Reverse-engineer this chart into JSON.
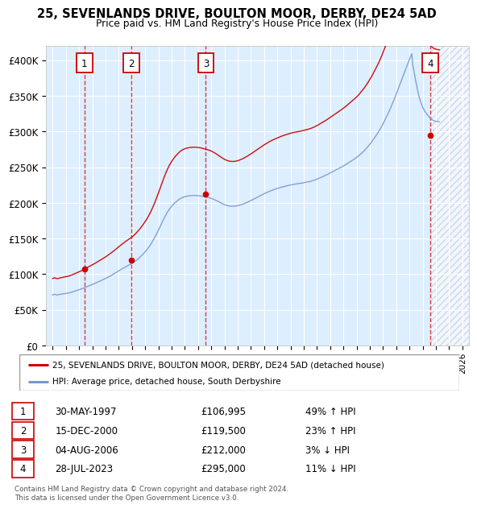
{
  "title": "25, SEVENLANDS DRIVE, BOULTON MOOR, DERBY, DE24 5AD",
  "subtitle": "Price paid vs. HM Land Registry's House Price Index (HPI)",
  "legend_line1": "25, SEVENLANDS DRIVE, BOULTON MOOR, DERBY, DE24 5AD (detached house)",
  "legend_line2": "HPI: Average price, detached house, South Derbyshire",
  "footer": "Contains HM Land Registry data © Crown copyright and database right 2024.\nThis data is licensed under the Open Government Licence v3.0.",
  "transactions": [
    {
      "num": 1,
      "date": "30-MAY-1997",
      "price": 106995,
      "hpi_pct": "49%",
      "hpi_dir": "↑"
    },
    {
      "num": 2,
      "date": "15-DEC-2000",
      "price": 119500,
      "hpi_pct": "23%",
      "hpi_dir": "↑"
    },
    {
      "num": 3,
      "date": "04-AUG-2006",
      "price": 212000,
      "hpi_pct": "3%",
      "hpi_dir": "↓"
    },
    {
      "num": 4,
      "date": "28-JUL-2023",
      "price": 295000,
      "hpi_pct": "11%",
      "hpi_dir": "↓"
    }
  ],
  "transaction_years": [
    1997.41,
    2000.96,
    2006.59,
    2023.57
  ],
  "transaction_prices": [
    106995,
    119500,
    212000,
    295000
  ],
  "sale_color": "#cc0000",
  "hpi_color": "#7799cc",
  "ylim": [
    0,
    420000
  ],
  "xlim_start": 1994.5,
  "xlim_end": 2026.5,
  "yticks": [
    0,
    50000,
    100000,
    150000,
    200000,
    250000,
    300000,
    350000,
    400000
  ],
  "xtick_years": [
    1995,
    1996,
    1997,
    1998,
    1999,
    2000,
    2001,
    2002,
    2003,
    2004,
    2005,
    2006,
    2007,
    2008,
    2009,
    2010,
    2011,
    2012,
    2013,
    2014,
    2015,
    2016,
    2017,
    2018,
    2019,
    2020,
    2021,
    2022,
    2023,
    2024,
    2025,
    2026
  ],
  "hpi_years": [
    1995.0,
    1995.083,
    1995.167,
    1995.25,
    1995.333,
    1995.417,
    1995.5,
    1995.583,
    1995.667,
    1995.75,
    1995.833,
    1995.917,
    1996.0,
    1996.083,
    1996.167,
    1996.25,
    1996.333,
    1996.417,
    1996.5,
    1996.583,
    1996.667,
    1996.75,
    1996.833,
    1996.917,
    1997.0,
    1997.083,
    1997.167,
    1997.25,
    1997.333,
    1997.417,
    1997.5,
    1997.583,
    1997.667,
    1997.75,
    1997.833,
    1997.917,
    1998.0,
    1998.083,
    1998.167,
    1998.25,
    1998.333,
    1998.417,
    1998.5,
    1998.583,
    1998.667,
    1998.75,
    1998.833,
    1998.917,
    1999.0,
    1999.083,
    1999.167,
    1999.25,
    1999.333,
    1999.417,
    1999.5,
    1999.583,
    1999.667,
    1999.75,
    1999.833,
    1999.917,
    2000.0,
    2000.083,
    2000.167,
    2000.25,
    2000.333,
    2000.417,
    2000.5,
    2000.583,
    2000.667,
    2000.75,
    2000.833,
    2000.917,
    2001.0,
    2001.083,
    2001.167,
    2001.25,
    2001.333,
    2001.417,
    2001.5,
    2001.583,
    2001.667,
    2001.75,
    2001.833,
    2001.917,
    2002.0,
    2002.083,
    2002.167,
    2002.25,
    2002.333,
    2002.417,
    2002.5,
    2002.583,
    2002.667,
    2002.75,
    2002.833,
    2002.917,
    2003.0,
    2003.083,
    2003.167,
    2003.25,
    2003.333,
    2003.417,
    2003.5,
    2003.583,
    2003.667,
    2003.75,
    2003.833,
    2003.917,
    2004.0,
    2004.083,
    2004.167,
    2004.25,
    2004.333,
    2004.417,
    2004.5,
    2004.583,
    2004.667,
    2004.75,
    2004.833,
    2004.917,
    2005.0,
    2005.083,
    2005.167,
    2005.25,
    2005.333,
    2005.417,
    2005.5,
    2005.583,
    2005.667,
    2005.75,
    2005.833,
    2005.917,
    2006.0,
    2006.083,
    2006.167,
    2006.25,
    2006.333,
    2006.417,
    2006.5,
    2006.583,
    2006.667,
    2006.75,
    2006.833,
    2006.917,
    2007.0,
    2007.083,
    2007.167,
    2007.25,
    2007.333,
    2007.417,
    2007.5,
    2007.583,
    2007.667,
    2007.75,
    2007.833,
    2007.917,
    2008.0,
    2008.083,
    2008.167,
    2008.25,
    2008.333,
    2008.417,
    2008.5,
    2008.583,
    2008.667,
    2008.75,
    2008.833,
    2008.917,
    2009.0,
    2009.083,
    2009.167,
    2009.25,
    2009.333,
    2009.417,
    2009.5,
    2009.583,
    2009.667,
    2009.75,
    2009.833,
    2009.917,
    2010.0,
    2010.083,
    2010.167,
    2010.25,
    2010.333,
    2010.417,
    2010.5,
    2010.583,
    2010.667,
    2010.75,
    2010.833,
    2010.917,
    2011.0,
    2011.083,
    2011.167,
    2011.25,
    2011.333,
    2011.417,
    2011.5,
    2011.583,
    2011.667,
    2011.75,
    2011.833,
    2011.917,
    2012.0,
    2012.083,
    2012.167,
    2012.25,
    2012.333,
    2012.417,
    2012.5,
    2012.583,
    2012.667,
    2012.75,
    2012.833,
    2012.917,
    2013.0,
    2013.083,
    2013.167,
    2013.25,
    2013.333,
    2013.417,
    2013.5,
    2013.583,
    2013.667,
    2013.75,
    2013.833,
    2013.917,
    2014.0,
    2014.083,
    2014.167,
    2014.25,
    2014.333,
    2014.417,
    2014.5,
    2014.583,
    2014.667,
    2014.75,
    2014.833,
    2014.917,
    2015.0,
    2015.083,
    2015.167,
    2015.25,
    2015.333,
    2015.417,
    2015.5,
    2015.583,
    2015.667,
    2015.75,
    2015.833,
    2015.917,
    2016.0,
    2016.083,
    2016.167,
    2016.25,
    2016.333,
    2016.417,
    2016.5,
    2016.583,
    2016.667,
    2016.75,
    2016.833,
    2016.917,
    2017.0,
    2017.083,
    2017.167,
    2017.25,
    2017.333,
    2017.417,
    2017.5,
    2017.583,
    2017.667,
    2017.75,
    2017.833,
    2017.917,
    2018.0,
    2018.083,
    2018.167,
    2018.25,
    2018.333,
    2018.417,
    2018.5,
    2018.583,
    2018.667,
    2018.75,
    2018.833,
    2018.917,
    2019.0,
    2019.083,
    2019.167,
    2019.25,
    2019.333,
    2019.417,
    2019.5,
    2019.583,
    2019.667,
    2019.75,
    2019.833,
    2019.917,
    2020.0,
    2020.083,
    2020.167,
    2020.25,
    2020.333,
    2020.417,
    2020.5,
    2020.583,
    2020.667,
    2020.75,
    2020.833,
    2020.917,
    2021.0,
    2021.083,
    2021.167,
    2021.25,
    2021.333,
    2021.417,
    2021.5,
    2021.583,
    2021.667,
    2021.75,
    2021.833,
    2021.917,
    2022.0,
    2022.083,
    2022.167,
    2022.25,
    2022.333,
    2022.417,
    2022.5,
    2022.583,
    2022.667,
    2022.75,
    2022.833,
    2022.917,
    2023.0,
    2023.083,
    2023.167,
    2023.25,
    2023.333,
    2023.417,
    2023.5,
    2023.583,
    2023.667,
    2023.75,
    2023.833,
    2023.917,
    2024.0,
    2024.083,
    2024.167,
    2024.25
  ],
  "hpi_values": [
    71000,
    71500,
    71800,
    71200,
    70900,
    71100,
    71400,
    71800,
    72000,
    72200,
    72500,
    72800,
    73000,
    73200,
    73500,
    73800,
    74200,
    74600,
    75100,
    75600,
    76200,
    76700,
    77200,
    77700,
    78100,
    78600,
    79200,
    79800,
    80400,
    81000,
    81700,
    82400,
    83000,
    83700,
    84300,
    84900,
    85500,
    86100,
    86800,
    87500,
    88200,
    88900,
    89700,
    90400,
    91100,
    91800,
    92500,
    93200,
    93900,
    94700,
    95500,
    96300,
    97200,
    98100,
    99000,
    99900,
    100800,
    101800,
    102800,
    103800,
    104700,
    105600,
    106500,
    107400,
    108300,
    109200,
    110100,
    111000,
    111800,
    112600,
    113400,
    114200,
    115000,
    116000,
    117100,
    118200,
    119400,
    120700,
    122000,
    123400,
    124900,
    126400,
    128000,
    129700,
    131300,
    133200,
    135100,
    137200,
    139400,
    141700,
    144100,
    146700,
    149500,
    152400,
    155400,
    158500,
    161700,
    164900,
    168100,
    171300,
    174500,
    177700,
    180800,
    183700,
    186400,
    188900,
    191200,
    193300,
    195200,
    196900,
    198500,
    200000,
    201400,
    202700,
    203900,
    205000,
    206000,
    206900,
    207600,
    208200,
    208700,
    209100,
    209400,
    209700,
    209900,
    210100,
    210200,
    210300,
    210300,
    210300,
    210200,
    210200,
    210100,
    209900,
    209700,
    209500,
    209200,
    208900,
    208600,
    208300,
    208000,
    207600,
    207200,
    206800,
    206300,
    205700,
    205100,
    204400,
    203700,
    202900,
    202100,
    201300,
    200500,
    199700,
    198900,
    198200,
    197500,
    196900,
    196400,
    196000,
    195700,
    195400,
    195300,
    195200,
    195200,
    195300,
    195500,
    195700,
    196000,
    196400,
    196800,
    197300,
    197800,
    198400,
    199000,
    199600,
    200300,
    201000,
    201700,
    202500,
    203200,
    204000,
    204800,
    205600,
    206400,
    207200,
    208000,
    208800,
    209600,
    210400,
    211200,
    212000,
    212800,
    213500,
    214200,
    215000,
    215700,
    216300,
    216900,
    217500,
    218100,
    218600,
    219200,
    219700,
    220200,
    220700,
    221200,
    221600,
    222100,
    222500,
    222900,
    223300,
    223700,
    224100,
    224400,
    224800,
    225100,
    225400,
    225700,
    226000,
    226200,
    226500,
    226700,
    226900,
    227200,
    227400,
    227600,
    227900,
    228100,
    228400,
    228700,
    229000,
    229300,
    229700,
    230100,
    230500,
    231000,
    231500,
    232100,
    232700,
    233300,
    233900,
    234600,
    235200,
    235900,
    236600,
    237300,
    238000,
    238700,
    239500,
    240300,
    241100,
    241900,
    242700,
    243500,
    244400,
    245200,
    246000,
    246800,
    247600,
    248400,
    249200,
    250000,
    250800,
    251700,
    252600,
    253500,
    254500,
    255500,
    256500,
    257500,
    258500,
    259500,
    260500,
    261500,
    262600,
    263700,
    264900,
    266100,
    267500,
    268900,
    270300,
    271800,
    273300,
    275000,
    276700,
    278500,
    280400,
    282300,
    284300,
    286300,
    288500,
    290600,
    292800,
    295100,
    297500,
    300000,
    302600,
    305200,
    308000,
    311000,
    314000,
    317000,
    320200,
    323400,
    326800,
    330200,
    333800,
    337400,
    341100,
    344900,
    348800,
    352700,
    356700,
    360800,
    364900,
    369000,
    373100,
    377200,
    381300,
    385400,
    389500,
    393500,
    397500,
    401400,
    405300,
    409100,
    393000,
    385000,
    376000,
    368000,
    360000,
    353000,
    347000,
    342000,
    338000,
    334000,
    331000,
    328000,
    326000,
    324000,
    322000,
    320000,
    318500,
    317000,
    316000,
    315200,
    314700,
    314300,
    314000,
    313800,
    313800,
    314000,
    315000,
    316500,
    318000,
    319500,
    321000,
    322500,
    324000,
    325500
  ]
}
